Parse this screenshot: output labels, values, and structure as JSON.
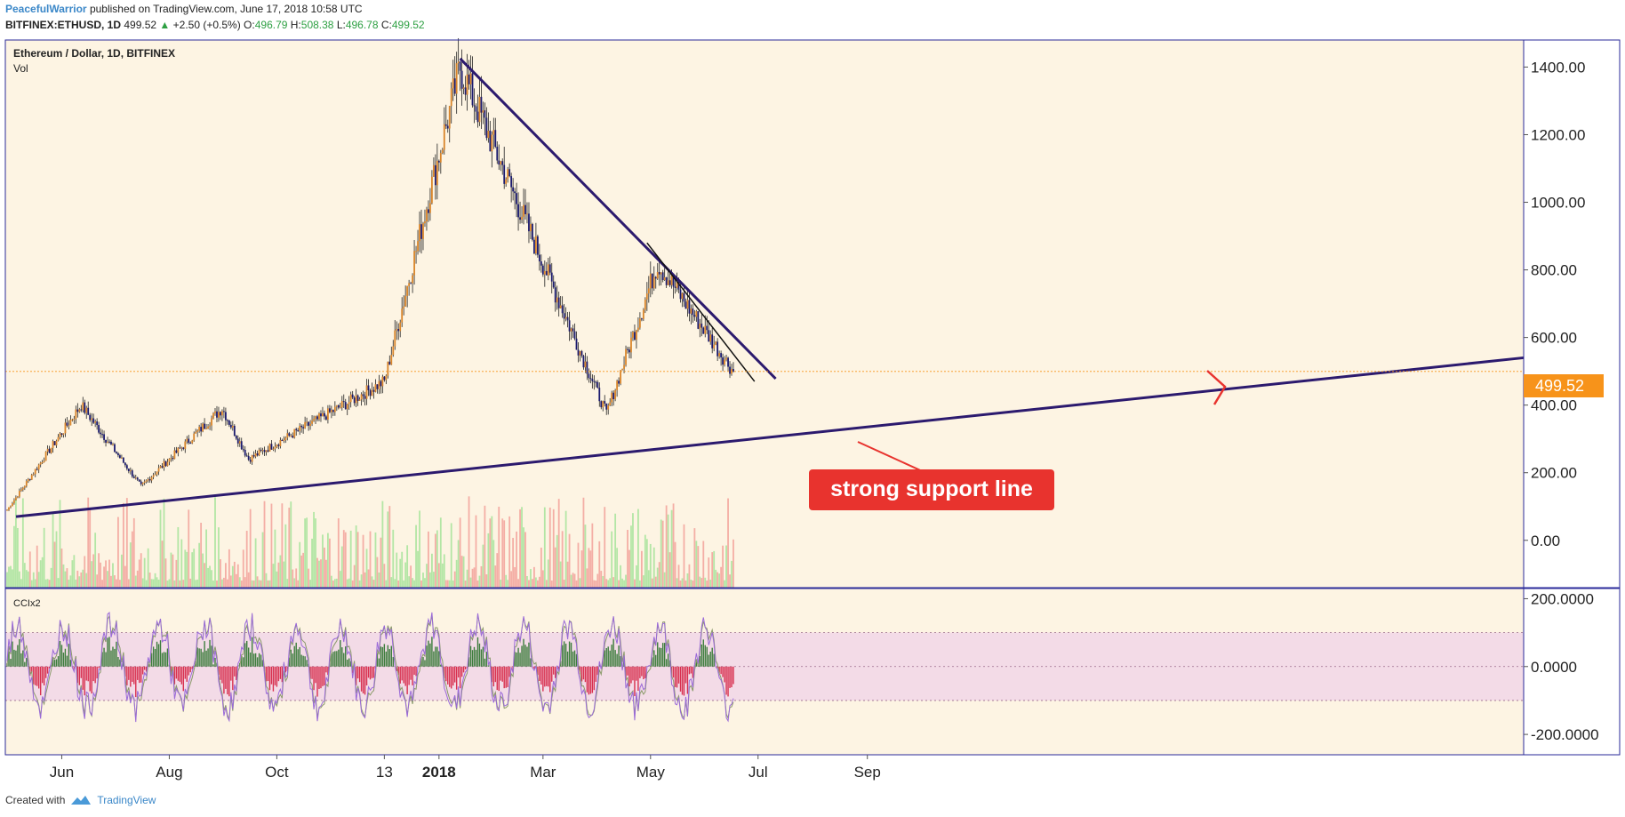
{
  "header": {
    "author": "PeacefulWarrior",
    "published": "published on TradingView.com, June 17, 2018 10:58 UTC",
    "symbol": "BITFINEX:ETHUSD, 1D",
    "last": "499.52",
    "change_arrow": "▲",
    "change": "+2.50 (+0.5%)",
    "o_label": "O:",
    "o_value": "496.79",
    "h_label": "H:",
    "h_value": "508.38",
    "l_label": "L:",
    "l_value": "496.78",
    "c_label": "C:",
    "c_value": "499.52"
  },
  "pane": {
    "title": "Ethereum / Dollar, 1D, BITFINEX",
    "volume_label": "Vol",
    "cci_label": "CCIx2"
  },
  "annotation": {
    "text": "strong support line"
  },
  "price_badge": "499.52",
  "footer": {
    "created_with": "Created with",
    "brand": "TradingView"
  },
  "colors": {
    "background": "#fdf4e3",
    "frame": "#2a2a9a",
    "trendline": "#2c1a6e",
    "bull": "#d9852a",
    "bear": "#1a1a6e",
    "annotation_bg": "#e8332e",
    "badge": "#f7931a",
    "cci_band": "#f3dbe7"
  },
  "chart_data": [
    {
      "type": "candlestick",
      "title": "Ethereum / Dollar, 1D, BITFINEX",
      "x_ticks": [
        "Jun",
        "Aug",
        "Oct",
        "13",
        "2018",
        "Mar",
        "May",
        "Jul",
        "Sep"
      ],
      "y_ticks": [
        "1400.00",
        "1200.00",
        "1000.00",
        "800.00",
        "600.00",
        "400.00",
        "200.00",
        "0.00"
      ],
      "ylim": [
        -140,
        1480
      ],
      "key_points": [
        {
          "date": "2017-05",
          "close": 90
        },
        {
          "date": "2017-06-12",
          "close": 400
        },
        {
          "date": "2017-07-16",
          "close": 160
        },
        {
          "date": "2017-08-31",
          "close": 390
        },
        {
          "date": "2017-09-15",
          "close": 240
        },
        {
          "date": "2017-12-01",
          "close": 470
        },
        {
          "date": "2018-01-13",
          "close": 1400
        },
        {
          "date": "2018-04-06",
          "close": 375
        },
        {
          "date": "2018-05-05",
          "close": 820
        },
        {
          "date": "2018-06-17",
          "close": 499.52
        }
      ],
      "current_price": 499.52,
      "trendlines": [
        "ascending support",
        "descending resistance from Jan 2018 high",
        "short-term descending line from May 2018 high"
      ]
    },
    {
      "type": "bar",
      "title": "Vol",
      "description": "volume histogram under price"
    },
    {
      "type": "line",
      "title": "CCIx2",
      "y_ticks": [
        "200.0000",
        "0.0000",
        "-200.0000"
      ],
      "ylim": [
        -260,
        230
      ],
      "bands": [
        -100,
        100
      ]
    }
  ]
}
